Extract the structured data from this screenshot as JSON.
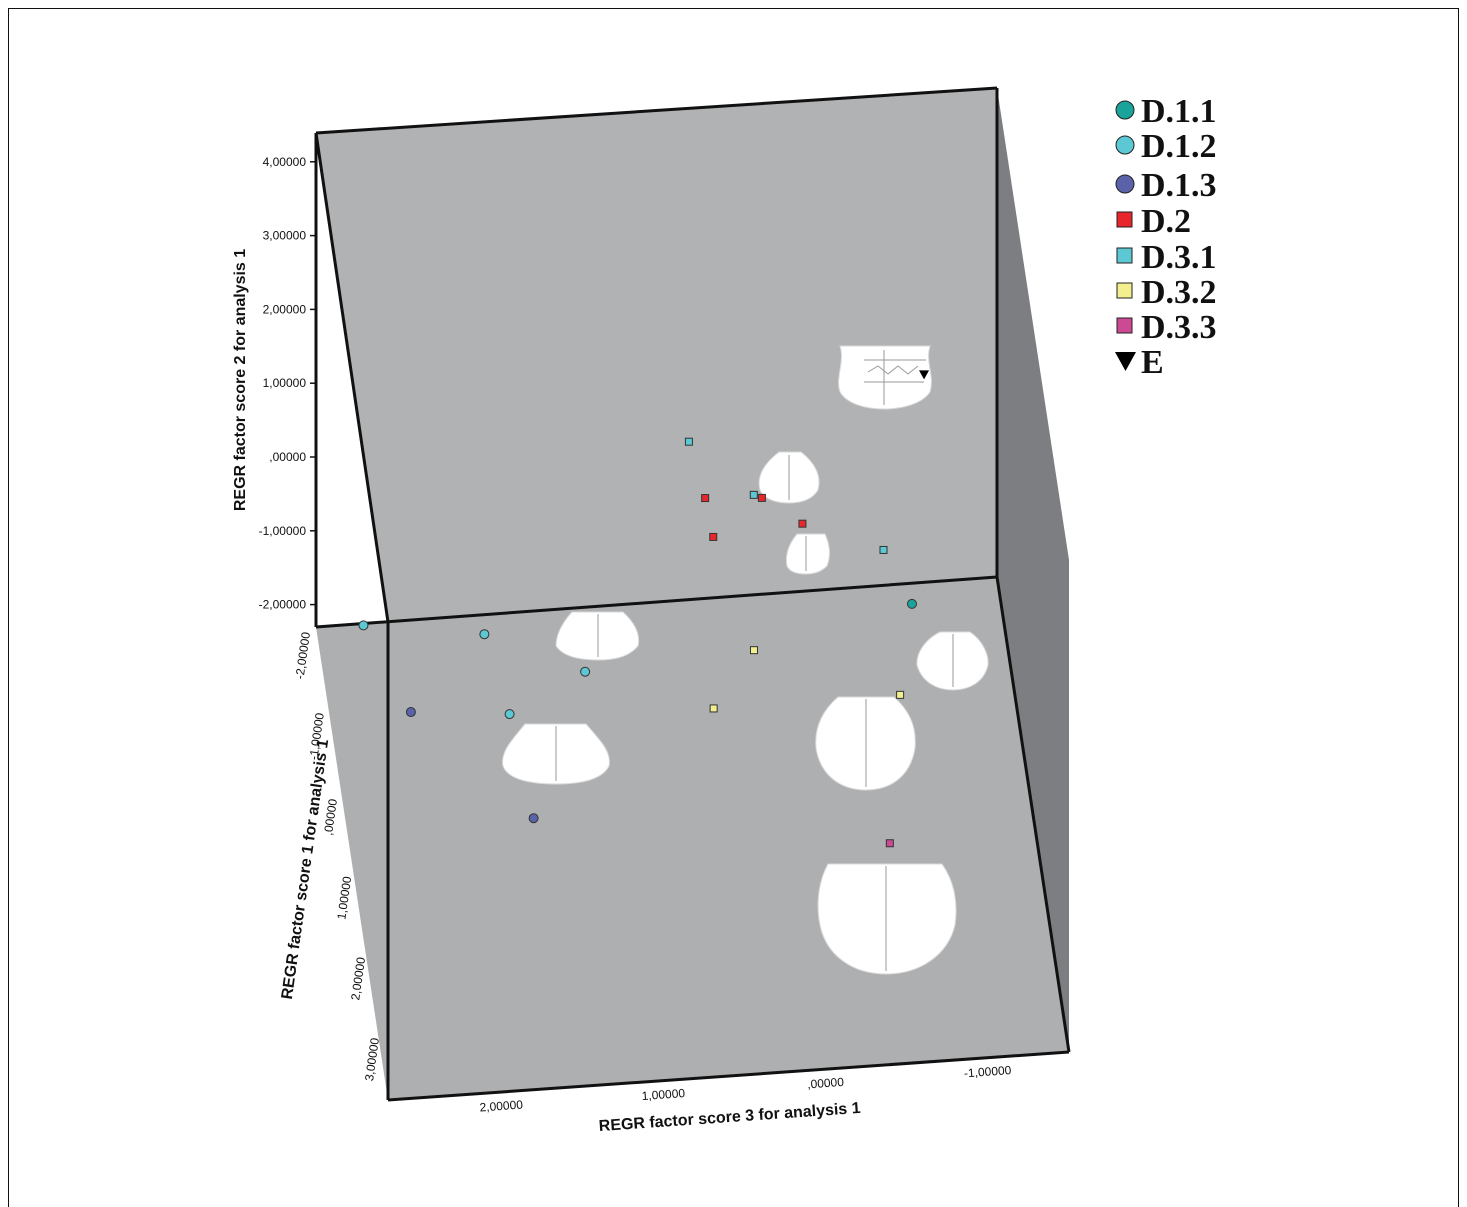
{
  "chart_data": {
    "type": "scatter",
    "dimensions": 3,
    "axes": {
      "vertical": {
        "label": "REGR factor score   2 for analysis 1",
        "ticks": [
          "4,00000",
          "3,00000",
          "2,00000",
          "1,00000",
          ",00000",
          "-1,00000",
          "-2,00000"
        ],
        "range": [
          -2.3,
          4.3
        ]
      },
      "depth": {
        "label": "REGR factor score   1 for analysis 1",
        "ticks": [
          "-2,00000",
          "-1,00000",
          ",00000",
          "1,00000",
          "2,00000",
          "3,00000"
        ],
        "range": [
          -2.3,
          3.1
        ]
      },
      "horizontal": {
        "label": "REGR factor score   3 for analysis 1",
        "ticks": [
          "2,00000",
          "1,00000",
          ",00000",
          "-1,00000"
        ],
        "range": [
          2.7,
          -1.5
        ],
        "reversed": true
      }
    },
    "legend": {
      "placement": "top-right",
      "entries": [
        {
          "label": "D.1.1",
          "shape": "circle",
          "color": "#1aa39a"
        },
        {
          "label": "D.1.2",
          "shape": "circle",
          "color": "#5bc8d3"
        },
        {
          "label": "D.1.3",
          "shape": "circle",
          "color": "#5a63aa"
        },
        {
          "label": "D.2",
          "shape": "square",
          "color": "#e8272d"
        },
        {
          "label": "D.3.1",
          "shape": "square",
          "color": "#5bc8d3"
        },
        {
          "label": "D.3.2",
          "shape": "square",
          "color": "#f3ee8e"
        },
        {
          "label": "D.3.3",
          "shape": "square",
          "color": "#cc4a93"
        },
        {
          "label": "E",
          "shape": "triangle-down",
          "color": "#000000"
        }
      ]
    },
    "series": [
      {
        "name": "D.1.1",
        "points": [
          {
            "f1": -1.9,
            "f2": -2.2,
            "f3": -0.95
          }
        ]
      },
      {
        "name": "D.1.2",
        "points": [
          {
            "f1": -1.7,
            "f2": -1.7,
            "f3": 2.45
          },
          {
            "f1": -1.75,
            "f2": -2.0,
            "f3": 1.7
          },
          {
            "f1": -1.1,
            "f2": -2.3,
            "f3": 1.6
          },
          {
            "f1": -1.5,
            "f2": -2.3,
            "f3": 1.1
          }
        ]
      },
      {
        "name": "D.1.3",
        "points": [
          {
            "f1": -1.2,
            "f2": -2.3,
            "f3": 2.2
          },
          {
            "f1": 0.05,
            "f2": -2.3,
            "f3": 1.55
          }
        ]
      },
      {
        "name": "D.2",
        "points": [
          {
            "f1": -2.2,
            "f2": -0.9,
            "f3": 0.3
          },
          {
            "f1": -2.2,
            "f2": -0.95,
            "f3": -0.05
          },
          {
            "f1": -2.2,
            "f2": -1.35,
            "f3": -0.3
          },
          {
            "f1": -2.2,
            "f2": -1.45,
            "f3": 0.25
          }
        ]
      },
      {
        "name": "D.3.1",
        "points": [
          {
            "f1": -2.2,
            "f2": -0.1,
            "f3": 0.4
          },
          {
            "f1": -2.2,
            "f2": -0.9,
            "f3": 0.0
          },
          {
            "f1": -2.2,
            "f2": -1.8,
            "f3": -0.8
          }
        ]
      },
      {
        "name": "D.3.2",
        "points": [
          {
            "f1": -1.6,
            "f2": -2.3,
            "f3": 0.05
          },
          {
            "f1": -1.0,
            "f2": -2.3,
            "f3": 0.35
          },
          {
            "f1": -1.0,
            "f2": -2.3,
            "f3": -0.8
          }
        ]
      },
      {
        "name": "D.3.3",
        "points": [
          {
            "f1": 0.6,
            "f2": -2.3,
            "f3": -0.6
          }
        ]
      },
      {
        "name": "E",
        "points": [
          {
            "f1": -2.2,
            "f2": 0.65,
            "f3": -1.05
          }
        ]
      }
    ]
  }
}
